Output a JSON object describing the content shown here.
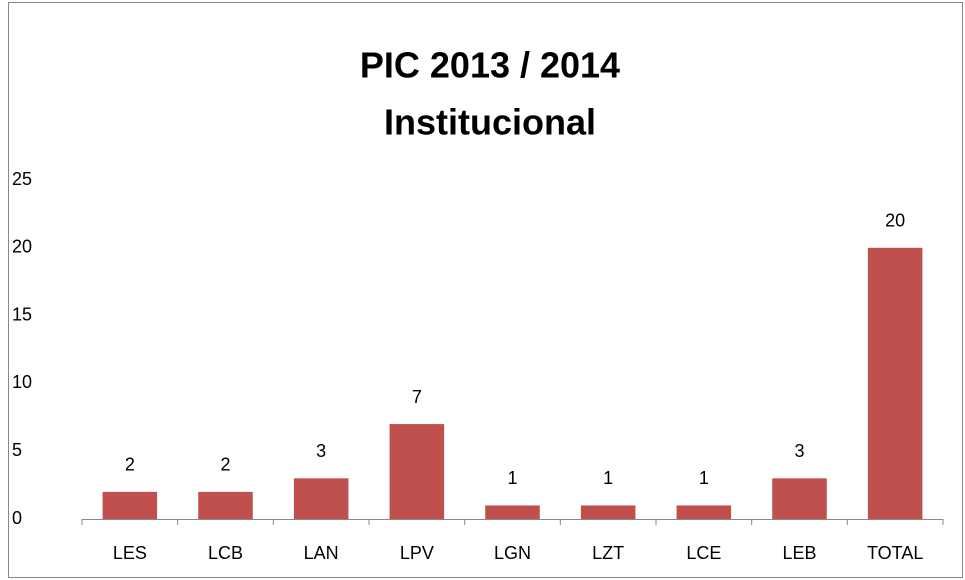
{
  "chart_data": {
    "type": "bar",
    "title": [
      "PIC 2013 / 2014",
      "Institucional"
    ],
    "categories": [
      "LES",
      "LCB",
      "LAN",
      "LPV",
      "LGN",
      "LZT",
      "LCE",
      "LEB",
      "TOTAL"
    ],
    "values": [
      2,
      2,
      3,
      7,
      1,
      1,
      1,
      3,
      20
    ],
    "color": "#c0504d",
    "ylim": [
      0,
      25
    ],
    "yticks": [
      0,
      5,
      10,
      15,
      20,
      25
    ],
    "grid": false
  }
}
